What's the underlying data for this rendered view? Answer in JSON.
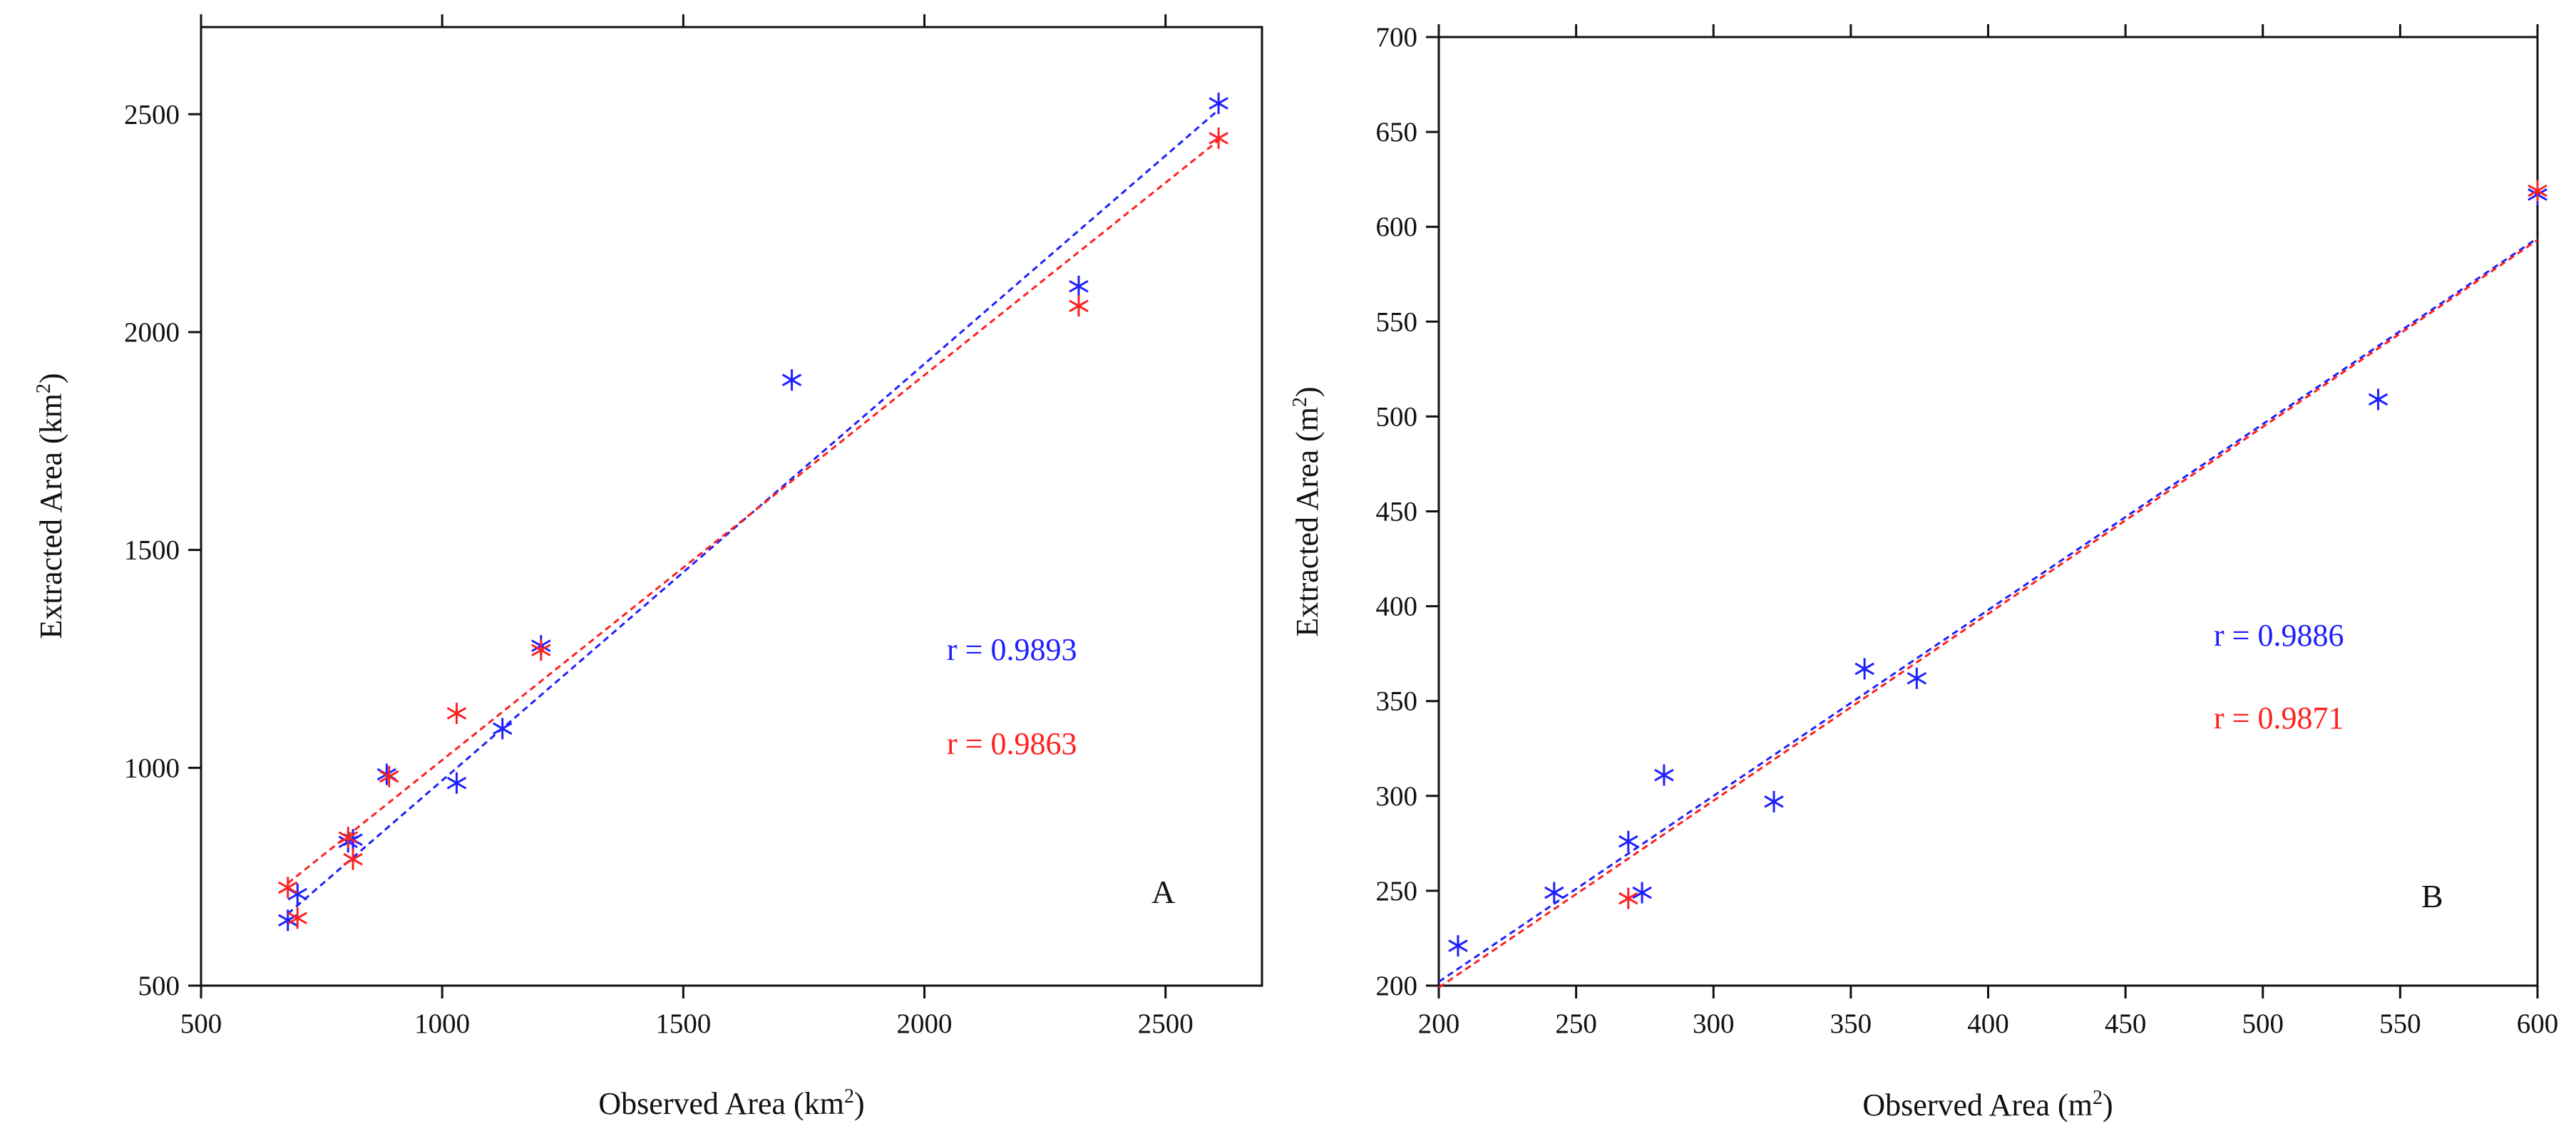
{
  "figure": {
    "background": "#ffffff"
  },
  "chart_data": [
    {
      "panel": "A",
      "type": "scatter",
      "panel_label": "A",
      "xlabel": "Observed Area (km",
      "ylabel": "Extracted Area (km",
      "unit_superscript": "2",
      "unit_close": ")",
      "xlim": [
        500,
        2700
      ],
      "ylim": [
        500,
        2700
      ],
      "xticks": [
        500,
        1000,
        1500,
        2000,
        2500
      ],
      "yticks": [
        500,
        1000,
        1500,
        2000,
        2500
      ],
      "grid": false,
      "series": [
        {
          "name": "blue",
          "color": "#1f1fff",
          "r_label": "r = 0.9893",
          "fit_line": {
            "x": [
              680,
              2610
            ],
            "y": [
              665,
              2510
            ]
          },
          "points": [
            {
              "x": 680,
              "y": 650
            },
            {
              "x": 700,
              "y": 710
            },
            {
              "x": 805,
              "y": 830
            },
            {
              "x": 815,
              "y": 835
            },
            {
              "x": 885,
              "y": 985
            },
            {
              "x": 1030,
              "y": 965
            },
            {
              "x": 1125,
              "y": 1090
            },
            {
              "x": 1205,
              "y": 1280
            },
            {
              "x": 1725,
              "y": 1890
            },
            {
              "x": 2320,
              "y": 2105
            },
            {
              "x": 2610,
              "y": 2525
            }
          ]
        },
        {
          "name": "red",
          "color": "#ff2020",
          "r_label": "r = 0.9863",
          "fit_line": {
            "x": [
              680,
              2610
            ],
            "y": [
              735,
              2440
            ]
          },
          "points": [
            {
              "x": 680,
              "y": 725
            },
            {
              "x": 700,
              "y": 655
            },
            {
              "x": 805,
              "y": 840
            },
            {
              "x": 815,
              "y": 790
            },
            {
              "x": 890,
              "y": 980
            },
            {
              "x": 1030,
              "y": 1125
            },
            {
              "x": 1205,
              "y": 1270
            },
            {
              "x": 2320,
              "y": 2060
            },
            {
              "x": 2610,
              "y": 2445
            }
          ]
        }
      ]
    },
    {
      "panel": "B",
      "type": "scatter",
      "panel_label": "B",
      "xlabel": "Observed Area (m",
      "ylabel": "Extracted Area (m",
      "unit_superscript": "2",
      "unit_close": ")",
      "xlim": [
        200,
        600
      ],
      "ylim": [
        200,
        700
      ],
      "xticks": [
        200,
        250,
        300,
        350,
        400,
        450,
        500,
        550,
        600
      ],
      "yticks": [
        200,
        250,
        300,
        350,
        400,
        450,
        500,
        550,
        600,
        650,
        700
      ],
      "grid": false,
      "series": [
        {
          "name": "blue",
          "color": "#1f1fff",
          "r_label": "r = 0.9886",
          "fit_line": {
            "x": [
              200,
              600
            ],
            "y": [
              202,
              594
            ]
          },
          "points": [
            {
              "x": 207,
              "y": 221
            },
            {
              "x": 242,
              "y": 249
            },
            {
              "x": 269,
              "y": 276
            },
            {
              "x": 274,
              "y": 249
            },
            {
              "x": 282,
              "y": 311
            },
            {
              "x": 322,
              "y": 297
            },
            {
              "x": 355,
              "y": 367
            },
            {
              "x": 374,
              "y": 362
            },
            {
              "x": 542,
              "y": 509
            },
            {
              "x": 600,
              "y": 617
            }
          ]
        },
        {
          "name": "red",
          "color": "#ff2020",
          "r_label": "r = 0.9871",
          "fit_line": {
            "x": [
              200,
              600
            ],
            "y": [
              199,
              593
            ]
          },
          "points": [
            {
              "x": 269,
              "y": 246
            },
            {
              "x": 600,
              "y": 619
            }
          ]
        }
      ]
    }
  ]
}
